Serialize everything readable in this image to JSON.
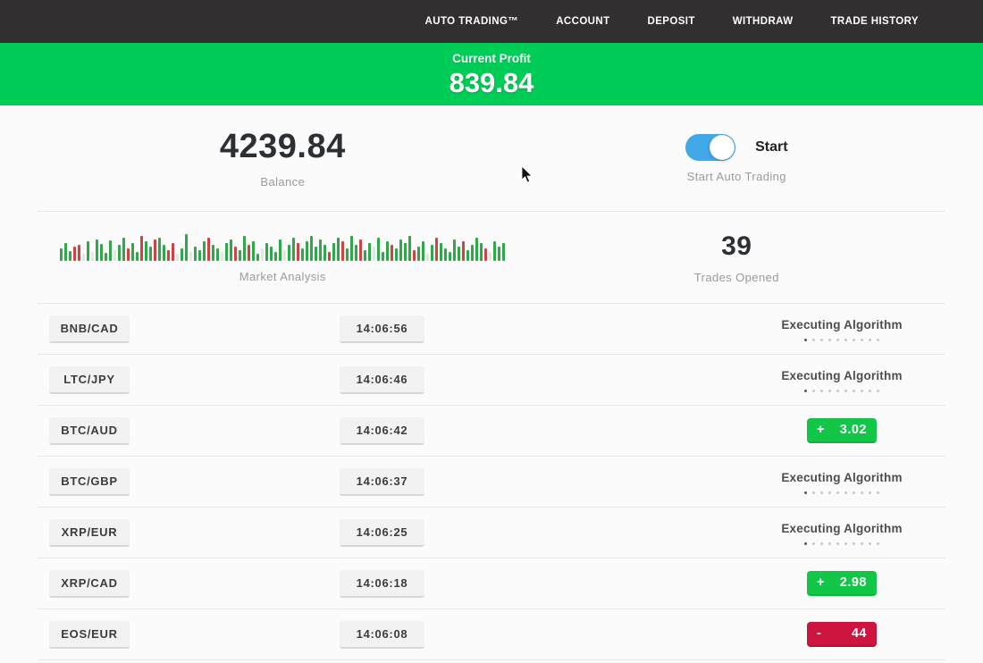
{
  "nav": {
    "items": [
      {
        "label": "AUTO TRADING™"
      },
      {
        "label": "ACCOUNT"
      },
      {
        "label": "DEPOSIT"
      },
      {
        "label": "WITHDRAW"
      },
      {
        "label": "TRADE HISTORY"
      }
    ]
  },
  "profit_banner": {
    "label": "Current Profit",
    "value": "839.84",
    "background_color": "#00cd57"
  },
  "stats": {
    "balance": {
      "value": "4239.84",
      "label": "Balance"
    },
    "auto_trading": {
      "toggle_on": true,
      "toggle_color": "#41a8e8",
      "toggle_label": "Start",
      "label": "Start Auto Trading"
    },
    "market_analysis": {
      "label": "Market Analysis"
    },
    "trades_opened": {
      "value": "39",
      "label": "Trades Opened"
    }
  },
  "chart_data": {
    "type": "bar",
    "title": "Market Analysis",
    "xlabel": "",
    "ylabel": "",
    "legend": false,
    "grid": false,
    "axes_visible": false,
    "colors": {
      "g": "#2fa84a",
      "r": "#d04343",
      "p": "#e2e7e1"
    },
    "bars": [
      [
        14,
        "g"
      ],
      [
        20,
        "g"
      ],
      [
        11,
        "g"
      ],
      [
        16,
        "r"
      ],
      [
        18,
        "r"
      ],
      [
        8,
        "p"
      ],
      [
        22,
        "g"
      ],
      [
        10,
        "p"
      ],
      [
        24,
        "g"
      ],
      [
        19,
        "g"
      ],
      [
        9,
        "g"
      ],
      [
        23,
        "g"
      ],
      [
        12,
        "p"
      ],
      [
        18,
        "g"
      ],
      [
        26,
        "g"
      ],
      [
        14,
        "r"
      ],
      [
        20,
        "g"
      ],
      [
        10,
        "g"
      ],
      [
        28,
        "r"
      ],
      [
        22,
        "g"
      ],
      [
        16,
        "g"
      ],
      [
        24,
        "r"
      ],
      [
        26,
        "g"
      ],
      [
        18,
        "g"
      ],
      [
        12,
        "r"
      ],
      [
        20,
        "r"
      ],
      [
        8,
        "p"
      ],
      [
        14,
        "g"
      ],
      [
        30,
        "g"
      ],
      [
        10,
        "p"
      ],
      [
        16,
        "g"
      ],
      [
        12,
        "g"
      ],
      [
        22,
        "g"
      ],
      [
        26,
        "r"
      ],
      [
        18,
        "g"
      ],
      [
        14,
        "g"
      ],
      [
        10,
        "p"
      ],
      [
        20,
        "g"
      ],
      [
        24,
        "g"
      ],
      [
        16,
        "r"
      ],
      [
        12,
        "g"
      ],
      [
        28,
        "g"
      ],
      [
        18,
        "r"
      ],
      [
        22,
        "g"
      ],
      [
        8,
        "g"
      ],
      [
        14,
        "p"
      ],
      [
        20,
        "g"
      ],
      [
        16,
        "g"
      ],
      [
        10,
        "g"
      ],
      [
        24,
        "g"
      ],
      [
        12,
        "p"
      ],
      [
        18,
        "g"
      ],
      [
        26,
        "g"
      ],
      [
        20,
        "r"
      ],
      [
        14,
        "g"
      ],
      [
        22,
        "g"
      ],
      [
        28,
        "g"
      ],
      [
        16,
        "g"
      ],
      [
        24,
        "g"
      ],
      [
        18,
        "g"
      ],
      [
        10,
        "r"
      ],
      [
        20,
        "g"
      ],
      [
        26,
        "g"
      ],
      [
        22,
        "r"
      ],
      [
        14,
        "g"
      ],
      [
        28,
        "g"
      ],
      [
        18,
        "g"
      ],
      [
        24,
        "r"
      ],
      [
        12,
        "g"
      ],
      [
        20,
        "g"
      ],
      [
        16,
        "p"
      ],
      [
        26,
        "g"
      ],
      [
        10,
        "g"
      ],
      [
        22,
        "g"
      ],
      [
        18,
        "r"
      ],
      [
        14,
        "g"
      ],
      [
        24,
        "g"
      ],
      [
        20,
        "g"
      ],
      [
        28,
        "g"
      ],
      [
        12,
        "r"
      ],
      [
        16,
        "g"
      ],
      [
        22,
        "g"
      ],
      [
        8,
        "p"
      ],
      [
        18,
        "g"
      ],
      [
        26,
        "r"
      ],
      [
        20,
        "g"
      ],
      [
        14,
        "g"
      ],
      [
        10,
        "g"
      ],
      [
        24,
        "g"
      ],
      [
        16,
        "g"
      ],
      [
        22,
        "r"
      ],
      [
        12,
        "g"
      ],
      [
        18,
        "g"
      ],
      [
        26,
        "g"
      ],
      [
        20,
        "g"
      ],
      [
        14,
        "r"
      ],
      [
        10,
        "p"
      ],
      [
        22,
        "g"
      ],
      [
        16,
        "g"
      ],
      [
        20,
        "g"
      ]
    ]
  },
  "trades": {
    "executing_dots": 10,
    "rows": [
      {
        "pair": "BNB/CAD",
        "time": "14:06:56",
        "status": "executing",
        "status_label": "Executing Algorithm"
      },
      {
        "pair": "LTC/JPY",
        "time": "14:06:46",
        "status": "executing",
        "status_label": "Executing Algorithm"
      },
      {
        "pair": "BTC/AUD",
        "time": "14:06:42",
        "status": "profit",
        "result_sign": "+",
        "result_value": "3.02"
      },
      {
        "pair": "BTC/GBP",
        "time": "14:06:37",
        "status": "executing",
        "status_label": "Executing Algorithm"
      },
      {
        "pair": "XRP/EUR",
        "time": "14:06:25",
        "status": "executing",
        "status_label": "Executing Algorithm"
      },
      {
        "pair": "XRP/CAD",
        "time": "14:06:18",
        "status": "profit",
        "result_sign": "+",
        "result_value": "2.98"
      },
      {
        "pair": "EOS/EUR",
        "time": "14:06:08",
        "status": "loss",
        "result_sign": "-",
        "result_value": "44"
      }
    ],
    "profit_color": "#12c748",
    "loss_color": "#ce1540"
  }
}
